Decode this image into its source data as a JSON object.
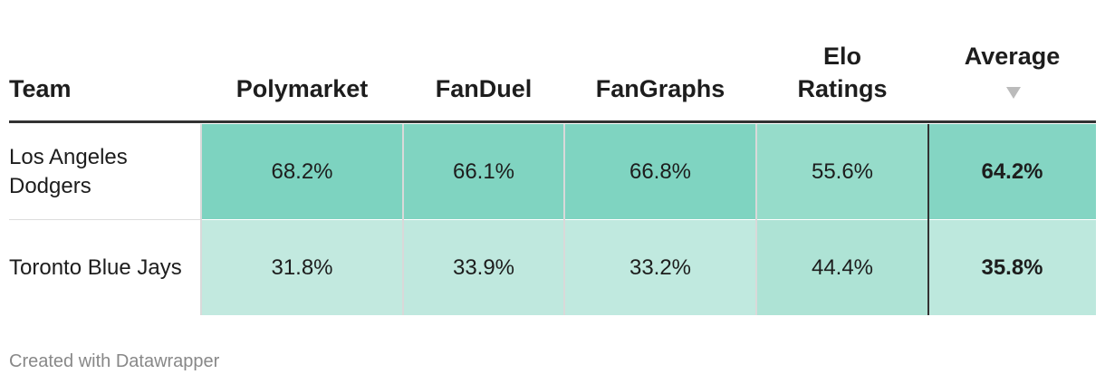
{
  "table": {
    "columns": [
      "Team",
      "Polymarket",
      "FanDuel",
      "FanGraphs",
      "Elo Ratings",
      "Average"
    ],
    "rows": [
      [
        "Los Angeles Dodgers",
        "68.2%",
        "66.1%",
        "66.8%",
        "55.6%",
        "64.2%"
      ],
      [
        "Toronto Blue Jays",
        "31.8%",
        "33.9%",
        "33.2%",
        "44.4%",
        "35.8%"
      ]
    ]
  },
  "footer": "Created with Datawrapper"
}
